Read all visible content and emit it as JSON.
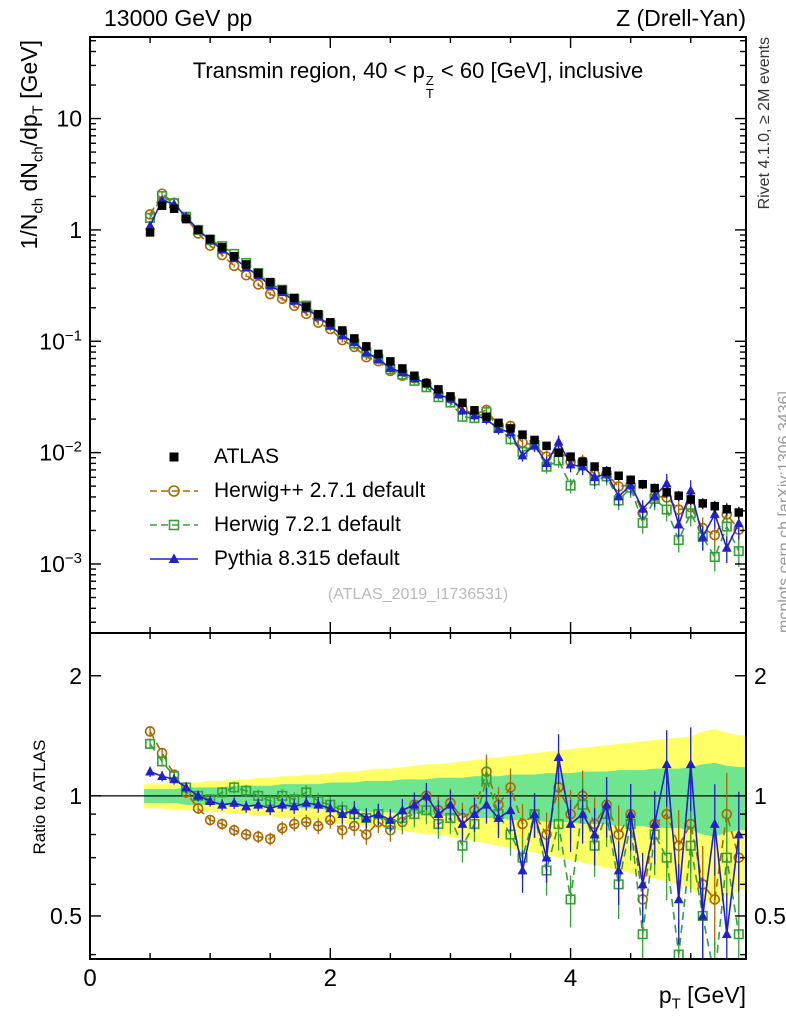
{
  "header": {
    "left": "13000 GeV pp",
    "right": "Z (Drell-Yan)"
  },
  "panel_title": {
    "pre": "Transmin region, 40 < p",
    "sup": "Z",
    "sub": "T",
    "post": " < 60 [GeV], inclusive"
  },
  "labels": {
    "y_main": {
      "p1": "1/N",
      "s1": "ch",
      "p2": " dN",
      "s2": "ch",
      "p3": "/dp",
      "s3": "T",
      "p4": " [GeV]"
    },
    "y_ratio": "Ratio to ATLAS",
    "x": {
      "p1": "p",
      "s1": "T",
      "p2": " [GeV]"
    }
  },
  "side_notes": {
    "top_right": "Rivet 4.1.0, ≥ 2M events",
    "bottom_right": "mcplots.cern.ch [arXiv:1306.3436]"
  },
  "watermark": "(ATLAS_2019_I1736531)",
  "legend": {
    "items": [
      {
        "series": 0,
        "label": "ATLAS"
      },
      {
        "series": 1,
        "label": "Herwig++ 2.7.1 default"
      },
      {
        "series": 2,
        "label": "Herwig 7.2.1 default"
      },
      {
        "series": 3,
        "label": "Pythia 8.315 default"
      }
    ]
  },
  "chart_data": {
    "type": "scatter",
    "x": [
      0.5,
      0.6,
      0.7,
      0.8,
      0.9,
      1.0,
      1.1,
      1.2,
      1.3,
      1.4,
      1.5,
      1.6,
      1.7,
      1.8,
      1.9,
      2.0,
      2.1,
      2.2,
      2.3,
      2.4,
      2.5,
      2.6,
      2.7,
      2.8,
      2.9,
      3.0,
      3.1,
      3.2,
      3.3,
      3.4,
      3.5,
      3.6,
      3.7,
      3.8,
      3.9,
      4.0,
      4.1,
      4.2,
      4.3,
      4.4,
      4.5,
      4.6,
      4.7,
      4.8,
      4.9,
      5.0,
      5.1,
      5.2,
      5.3,
      5.4
    ],
    "series": [
      {
        "id": "atlas",
        "name": "ATLAS",
        "color": "#000000",
        "marker": "square-filled",
        "line": "none",
        "values": [
          0.95,
          1.65,
          1.55,
          1.25,
          1.0,
          0.83,
          0.7,
          0.58,
          0.49,
          0.41,
          0.34,
          0.29,
          0.245,
          0.205,
          0.175,
          0.148,
          0.125,
          0.106,
          0.09,
          0.077,
          0.066,
          0.057,
          0.049,
          0.042,
          0.037,
          0.032,
          0.028,
          0.024,
          0.021,
          0.0185,
          0.0165,
          0.0145,
          0.013,
          0.0115,
          0.01,
          0.0092,
          0.0083,
          0.0075,
          0.0068,
          0.0062,
          0.0057,
          0.0052,
          0.0048,
          0.0044,
          0.0041,
          0.0038,
          0.0035,
          0.0033,
          0.0031,
          0.0029
        ]
      },
      {
        "id": "herwigpp",
        "name": "Herwig++ 2.7.1 default",
        "color": "#aa6600",
        "marker": "circle-open",
        "line": "dashed",
        "ratio": [
          1.45,
          1.28,
          1.13,
          1.02,
          0.93,
          0.87,
          0.85,
          0.82,
          0.8,
          0.79,
          0.78,
          0.83,
          0.85,
          0.86,
          0.84,
          0.87,
          0.82,
          0.84,
          0.8,
          0.86,
          0.82,
          0.86,
          0.95,
          1.0,
          0.92,
          0.96,
          0.88,
          0.92,
          1.15,
          0.95,
          1.05,
          0.85,
          0.9,
          0.8,
          1.05,
          0.9,
          1.0,
          0.85,
          0.95,
          0.8,
          0.9,
          0.55,
          0.85,
          0.9,
          0.75,
          0.85,
          0.6,
          0.55,
          0.9,
          0.7
        ]
      },
      {
        "id": "herwig7",
        "name": "Herwig 7.2.1 default",
        "color": "#35a035",
        "marker": "square-open",
        "line": "dashed",
        "ratio": [
          1.35,
          1.22,
          1.12,
          1.05,
          1.0,
          0.98,
          1.02,
          1.05,
          1.03,
          1.0,
          0.97,
          1.0,
          0.98,
          1.02,
          0.97,
          0.95,
          0.92,
          0.9,
          0.88,
          0.9,
          0.85,
          0.88,
          0.9,
          0.92,
          0.85,
          0.88,
          0.75,
          0.85,
          1.1,
          0.9,
          0.8,
          0.7,
          0.9,
          0.65,
          0.85,
          0.55,
          0.95,
          0.75,
          0.9,
          0.6,
          0.85,
          0.45,
          0.8,
          0.7,
          0.4,
          0.75,
          0.5,
          0.35,
          0.7,
          0.45
        ]
      },
      {
        "id": "pythia8",
        "name": "Pythia 8.315 default",
        "color": "#2020cc",
        "marker": "triangle-filled",
        "line": "solid",
        "ratio": [
          1.15,
          1.12,
          1.1,
          1.05,
          1.0,
          0.97,
          0.95,
          0.96,
          0.94,
          0.95,
          0.93,
          0.95,
          0.94,
          0.96,
          0.95,
          0.93,
          0.9,
          0.92,
          0.88,
          0.9,
          0.87,
          0.92,
          0.95,
          1.0,
          0.9,
          0.95,
          0.85,
          0.9,
          0.95,
          0.88,
          0.92,
          0.65,
          0.9,
          0.7,
          1.25,
          0.85,
          0.9,
          0.8,
          0.95,
          0.65,
          0.9,
          0.6,
          0.85,
          1.2,
          0.55,
          1.2,
          0.5,
          0.85,
          0.45,
          0.8
        ]
      }
    ],
    "bands": {
      "yellow": {
        "color": "#ffff66",
        "halfwidth": [
          0.07,
          0.07,
          0.08,
          0.08,
          0.08,
          0.09,
          0.09,
          0.1,
          0.1,
          0.11,
          0.11,
          0.12,
          0.12,
          0.13,
          0.13,
          0.14,
          0.15,
          0.15,
          0.16,
          0.17,
          0.17,
          0.18,
          0.19,
          0.2,
          0.2,
          0.21,
          0.22,
          0.23,
          0.24,
          0.25,
          0.26,
          0.27,
          0.28,
          0.29,
          0.3,
          0.31,
          0.32,
          0.33,
          0.34,
          0.35,
          0.36,
          0.37,
          0.38,
          0.39,
          0.4,
          0.41,
          0.45,
          0.47,
          0.44,
          0.42
        ]
      },
      "green": {
        "color": "#6fe58f",
        "halfwidth": [
          0.04,
          0.04,
          0.04,
          0.05,
          0.05,
          0.05,
          0.05,
          0.06,
          0.06,
          0.06,
          0.06,
          0.07,
          0.07,
          0.07,
          0.07,
          0.08,
          0.08,
          0.08,
          0.09,
          0.09,
          0.09,
          0.1,
          0.1,
          0.1,
          0.11,
          0.11,
          0.11,
          0.12,
          0.12,
          0.12,
          0.13,
          0.13,
          0.13,
          0.14,
          0.14,
          0.14,
          0.15,
          0.15,
          0.15,
          0.16,
          0.16,
          0.16,
          0.17,
          0.17,
          0.17,
          0.18,
          0.2,
          0.21,
          0.19,
          0.18
        ]
      }
    },
    "uncertainties": {
      "atlas_rel": {
        "base": 0.025,
        "growth": 0.1,
        "power": 2
      },
      "model_rel": {
        "base": 0.03,
        "growth": 0.25,
        "power": 2.2
      }
    },
    "axes": {
      "x": {
        "min": 0,
        "max": 5.46,
        "major_ticks": [
          0,
          2,
          4
        ],
        "minor_step": 0.5,
        "label": "pT [GeV]"
      },
      "y_main": {
        "scale": "log",
        "min": 0.00024,
        "max": 54,
        "tick_labels": [
          "10",
          "1",
          "10^-1",
          "10^-2",
          "10^-3"
        ]
      },
      "y_ratio": {
        "scale": "log",
        "min": 0.39,
        "max": 2.56,
        "tick_labels": [
          "2",
          "1",
          "0.5"
        ]
      }
    }
  }
}
